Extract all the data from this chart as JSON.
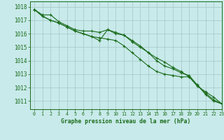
{
  "background_color": "#c8eaea",
  "grid_color": "#aacccc",
  "line_color": "#1a6b1a",
  "title": "Graphe pression niveau de la mer (hPa)",
  "xlim": [
    -0.5,
    23
  ],
  "ylim": [
    1010.4,
    1018.4
  ],
  "yticks": [
    1011,
    1012,
    1013,
    1014,
    1015,
    1016,
    1017,
    1018
  ],
  "xticks": [
    0,
    1,
    2,
    3,
    4,
    5,
    6,
    7,
    8,
    9,
    10,
    11,
    12,
    13,
    14,
    15,
    16,
    17,
    18,
    19,
    20,
    21,
    22,
    23
  ],
  "series": [
    [
      1017.8,
      1017.4,
      1017.4,
      1016.9,
      1016.6,
      1016.3,
      1016.2,
      1016.2,
      1016.1,
      1016.3,
      1016.0,
      1015.9,
      1015.5,
      1015.1,
      1014.6,
      1014.0,
      1013.6,
      1013.4,
      1013.1,
      1012.9,
      1012.2,
      1011.5,
      1011.0,
      1010.8
    ],
    [
      1017.8,
      1017.3,
      1017.0,
      1016.8,
      1016.5,
      1016.2,
      1016.0,
      1015.8,
      1015.7,
      1015.6,
      1015.5,
      1015.1,
      1014.6,
      1014.1,
      1013.6,
      1013.2,
      1013.0,
      1012.9,
      1012.8,
      1012.8,
      1012.1,
      1011.7,
      1011.3,
      1010.8
    ],
    [
      1017.8,
      1017.3,
      1017.0,
      1016.8,
      1016.5,
      1016.2,
      1016.0,
      1015.8,
      1015.5,
      1016.3,
      1016.1,
      1015.9,
      1015.4,
      1015.0,
      1014.6,
      1014.2,
      1013.9,
      1013.5,
      1013.2,
      1012.8,
      1012.2,
      1011.6,
      1011.1,
      1010.8
    ]
  ]
}
